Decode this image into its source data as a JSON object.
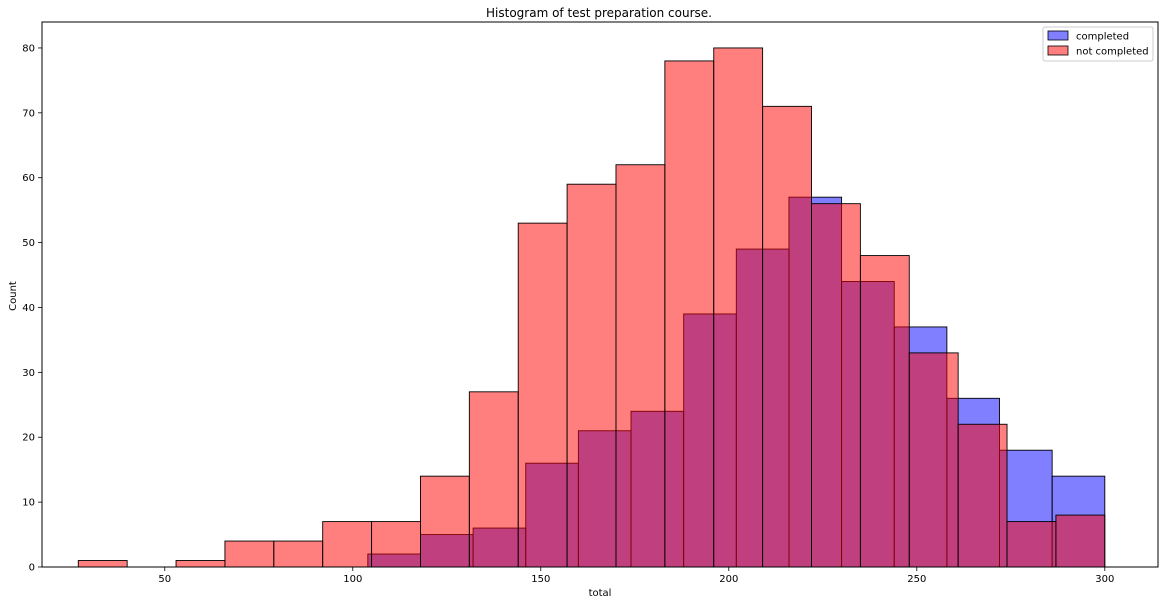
{
  "chart_data": {
    "type": "bar",
    "title": "Histogram of test preparation course.",
    "xlabel": "total",
    "ylabel": "Count",
    "xlim": [
      17.35,
      314.15
    ],
    "ylim": [
      0,
      84
    ],
    "xticks": [
      50,
      100,
      150,
      200,
      250,
      300
    ],
    "yticks": [
      0,
      10,
      20,
      30,
      40,
      50,
      60,
      70,
      80
    ],
    "legend_position": "top-right",
    "grid": false,
    "series": [
      {
        "name": "completed",
        "color": "#0000ff",
        "alpha": 0.5,
        "bin_edges": [
          104,
          118,
          132,
          146,
          160,
          174,
          188,
          202,
          216,
          230,
          244,
          258,
          272,
          286,
          300
        ],
        "counts": [
          2,
          5,
          6,
          16,
          21,
          24,
          39,
          49,
          57,
          44,
          37,
          26,
          18,
          14
        ]
      },
      {
        "name": "not completed",
        "color": "#ff0000",
        "alpha": 0.5,
        "bin_edges": [
          27,
          40,
          53,
          66,
          79,
          92,
          105,
          118,
          131,
          144,
          157,
          170,
          183,
          196,
          209,
          222,
          235,
          248,
          261,
          274,
          287,
          300
        ],
        "counts": [
          1,
          0,
          1,
          4,
          4,
          7,
          7,
          14,
          27,
          53,
          59,
          62,
          78,
          80,
          71,
          56,
          48,
          33,
          22,
          7,
          8
        ]
      }
    ]
  }
}
